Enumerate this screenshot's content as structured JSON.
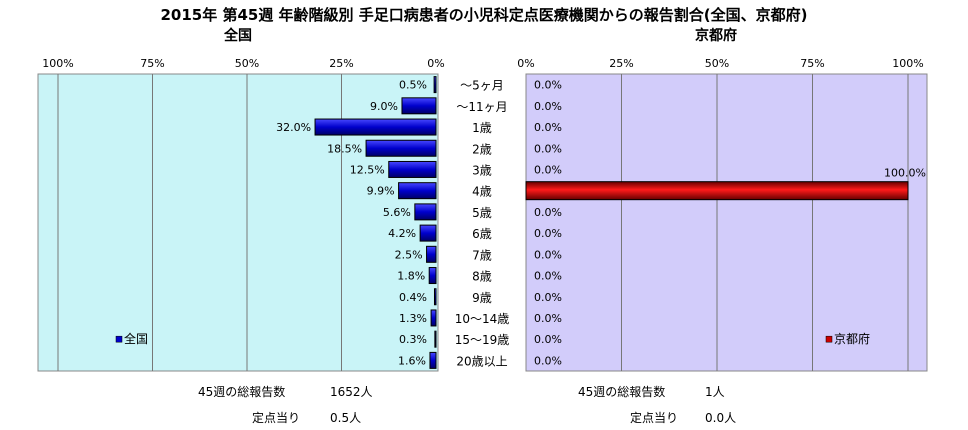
{
  "title": "2015年 第45週 年齢階級別 手足口病患者の小児科定点医療機関からの報告割合(全国、京都府)",
  "categories": [
    "〜5ヶ月",
    "〜11ヶ月",
    "1歳",
    "2歳",
    "3歳",
    "4歳",
    "5歳",
    "6歳",
    "7歳",
    "8歳",
    "9歳",
    "10〜14歳",
    "15〜19歳",
    "20歳以上"
  ],
  "chart_data": [
    {
      "type": "bar",
      "orientation": "horizontal-reversed",
      "title": "全国",
      "categories": [
        "〜5ヶ月",
        "〜11ヶ月",
        "1歳",
        "2歳",
        "3歳",
        "4歳",
        "5歳",
        "6歳",
        "7歳",
        "8歳",
        "9歳",
        "10〜14歳",
        "15〜19歳",
        "20歳以上"
      ],
      "series": [
        {
          "name": "全国",
          "values": [
            0.5,
            9.0,
            32.0,
            18.5,
            12.5,
            9.9,
            5.6,
            4.2,
            2.5,
            1.8,
            0.4,
            1.3,
            0.3,
            1.6
          ]
        }
      ],
      "value_labels": [
        "0.5%",
        "9.0%",
        "32.0%",
        "18.5%",
        "12.5%",
        "9.9%",
        "5.6%",
        "4.2%",
        "2.5%",
        "1.8%",
        "0.4%",
        "1.3%",
        "0.3%",
        "1.6%"
      ],
      "xlim": [
        0,
        100
      ],
      "ticks": [
        "100%",
        "75%",
        "50%",
        "25%",
        "0%"
      ],
      "grid": true,
      "legend_position": "bottom-left",
      "bar_color": "#0000cc",
      "plot_bg": "#c9f4f7"
    },
    {
      "type": "bar",
      "orientation": "horizontal",
      "title": "京都府",
      "categories": [
        "〜5ヶ月",
        "〜11ヶ月",
        "1歳",
        "2歳",
        "3歳",
        "4歳",
        "5歳",
        "6歳",
        "7歳",
        "8歳",
        "9歳",
        "10〜14歳",
        "15〜19歳",
        "20歳以上"
      ],
      "series": [
        {
          "name": "京都府",
          "values": [
            0,
            0,
            0,
            0,
            0,
            100,
            0,
            0,
            0,
            0,
            0,
            0,
            0,
            0
          ]
        }
      ],
      "value_labels": [
        "0.0%",
        "0.0%",
        "0.0%",
        "0.0%",
        "0.0%",
        "100.0%",
        "0.0%",
        "0.0%",
        "0.0%",
        "0.0%",
        "0.0%",
        "0.0%",
        "0.0%",
        "0.0%"
      ],
      "xlim": [
        0,
        100
      ],
      "ticks": [
        "0%",
        "25%",
        "50%",
        "75%",
        "100%"
      ],
      "grid": true,
      "legend_position": "bottom-right",
      "bar_color": "#cc0000",
      "plot_bg": "#d2ccfa"
    }
  ],
  "footer": {
    "national": {
      "total_label": "45週の総報告数",
      "total_value": "1652人",
      "per_label": "定点当り",
      "per_value": "0.5人"
    },
    "kyoto": {
      "total_label": "45週の総報告数",
      "total_value": "1人",
      "per_label": "定点当り",
      "per_value": "0.0人"
    }
  }
}
